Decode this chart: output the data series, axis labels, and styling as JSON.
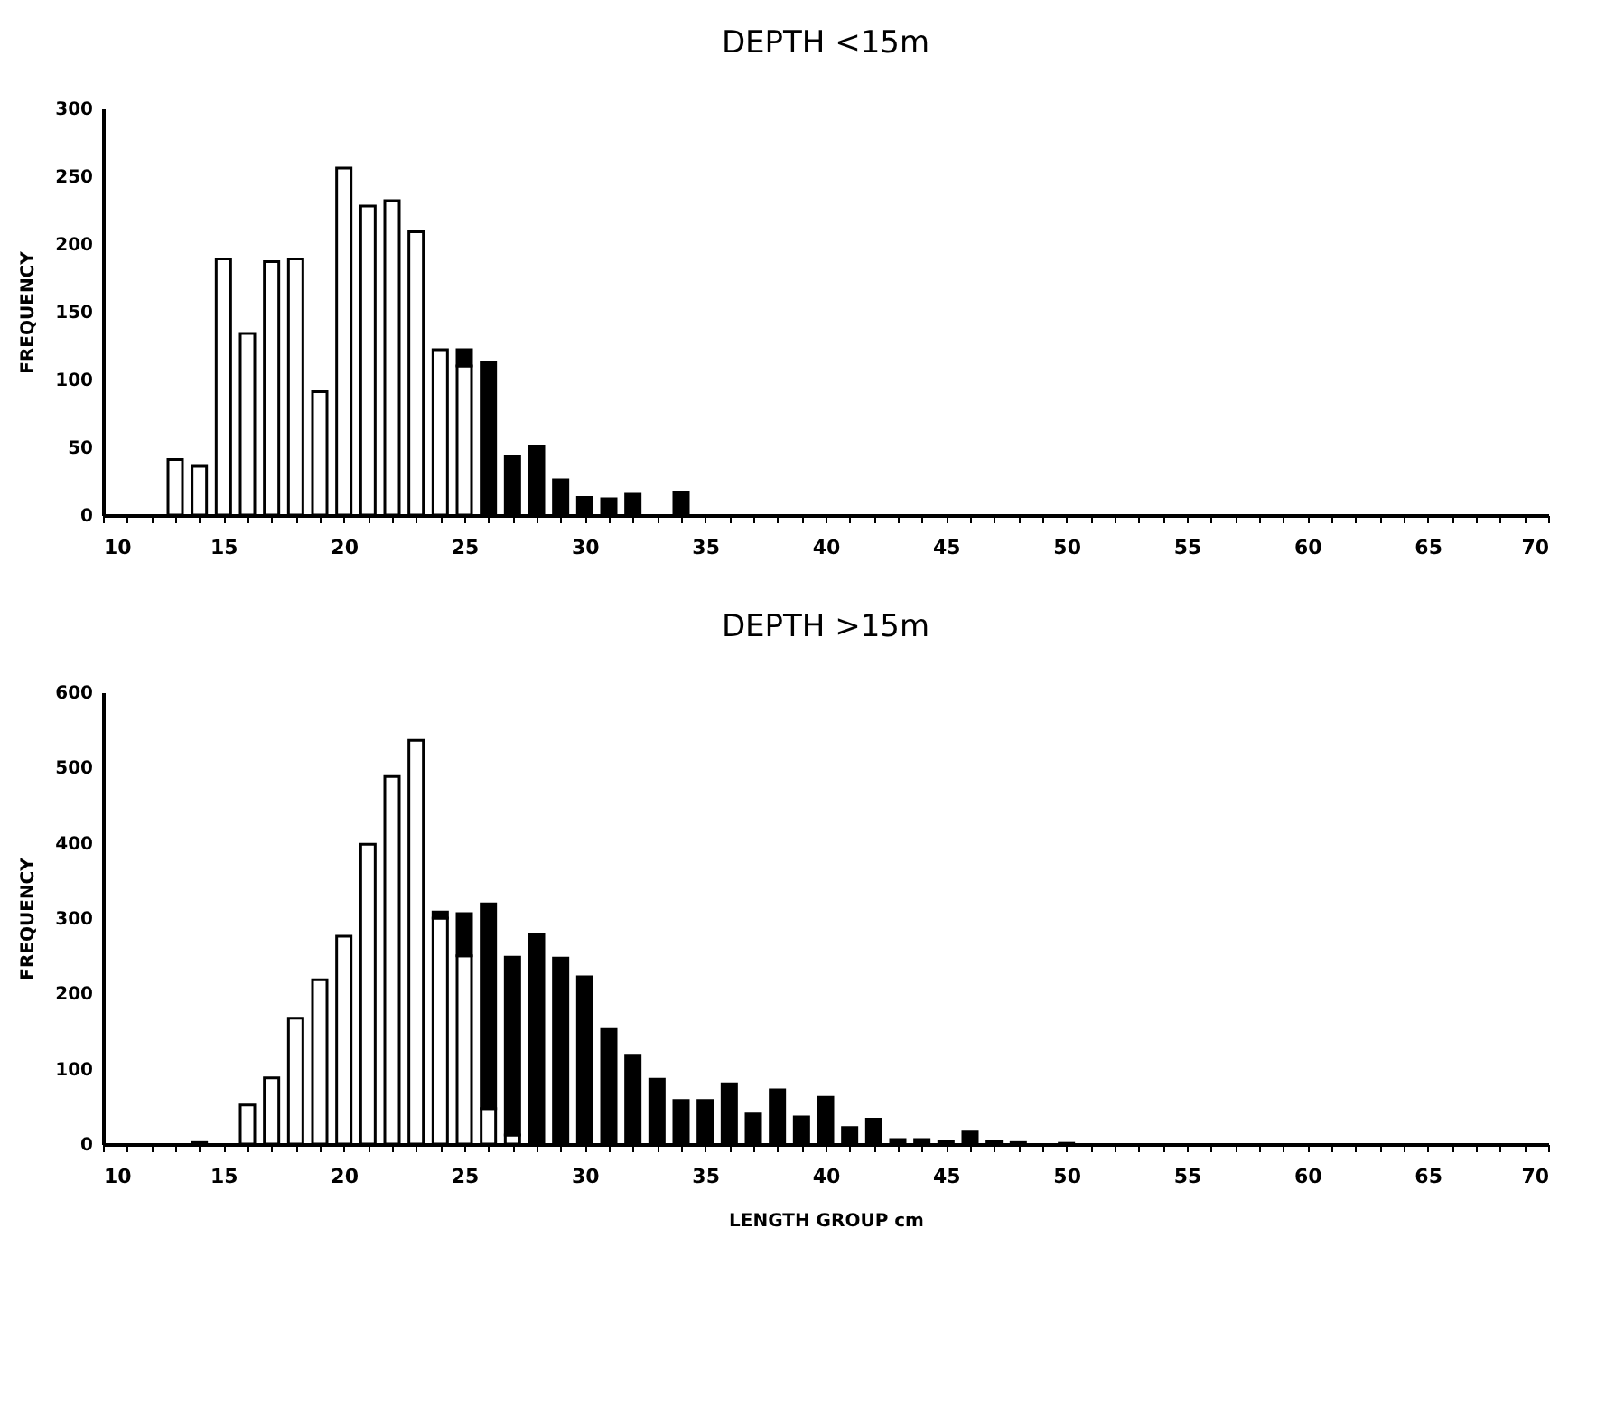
{
  "chart_data": [
    {
      "type": "bar",
      "title": "DEPTH <15m",
      "ylabel": "FREQUENCY",
      "stacked": true,
      "grid": false,
      "x": [
        13,
        14,
        15,
        16,
        17,
        18,
        19,
        20,
        21,
        22,
        23,
        24,
        25,
        26,
        27,
        28,
        29,
        30,
        31,
        32,
        34
      ],
      "series": [
        {
          "color": "#ffffff",
          "values": [
            41,
            36,
            189,
            134,
            187,
            189,
            91,
            256,
            228,
            232,
            209,
            122,
            110,
            null,
            null,
            null,
            null,
            null,
            null,
            null,
            null
          ]
        },
        {
          "color": "#000000",
          "values": [
            null,
            null,
            null,
            null,
            null,
            null,
            null,
            null,
            null,
            null,
            null,
            null,
            12,
            113,
            43,
            51,
            26,
            13,
            12,
            16,
            17
          ]
        }
      ],
      "xlim": [
        10,
        70
      ],
      "xticks": [
        10,
        {
          "value": 11,
          "label": null
        },
        {
          "value": 12,
          "label": null
        },
        {
          "value": 13,
          "label": null
        },
        {
          "value": 14,
          "label": null
        },
        15,
        {
          "value": 16,
          "label": null
        },
        {
          "value": 17,
          "label": null
        },
        {
          "value": 18,
          "label": null
        },
        {
          "value": 19,
          "label": null
        },
        20,
        {
          "value": 21,
          "label": null
        },
        {
          "value": 22,
          "label": null
        },
        {
          "value": 23,
          "label": null
        },
        {
          "value": 24,
          "label": null
        },
        25,
        {
          "value": 26,
          "label": null
        },
        {
          "value": 27,
          "label": null
        },
        {
          "value": 28,
          "label": null
        },
        {
          "value": 29,
          "label": null
        },
        30,
        {
          "value": 31,
          "label": null
        },
        {
          "value": 32,
          "label": null
        },
        {
          "value": 33,
          "label": null
        },
        {
          "value": 34,
          "label": null
        },
        35,
        {
          "value": 36,
          "label": null
        },
        {
          "value": 37,
          "label": null
        },
        {
          "value": 38,
          "label": null
        },
        {
          "value": 39,
          "label": null
        },
        40,
        {
          "value": 41,
          "label": null
        },
        {
          "value": 42,
          "label": null
        },
        {
          "value": 43,
          "label": null
        },
        {
          "value": 44,
          "label": null
        },
        45,
        {
          "value": 46,
          "label": null
        },
        {
          "value": 47,
          "label": null
        },
        {
          "value": 48,
          "label": null
        },
        {
          "value": 49,
          "label": null
        },
        50,
        {
          "value": 51,
          "label": null
        },
        {
          "value": 52,
          "label": null
        },
        {
          "value": 53,
          "label": null
        },
        {
          "value": 54,
          "label": null
        },
        55,
        {
          "value": 56,
          "label": null
        },
        {
          "value": 57,
          "label": null
        },
        {
          "value": 58,
          "label": null
        },
        {
          "value": 59,
          "label": null
        },
        60,
        {
          "value": 61,
          "label": null
        },
        {
          "value": 62,
          "label": null
        },
        {
          "value": 63,
          "label": null
        },
        {
          "value": 64,
          "label": null
        },
        65,
        {
          "value": 66,
          "label": null
        },
        {
          "value": 67,
          "label": null
        },
        {
          "value": 68,
          "label": null
        },
        {
          "value": 69,
          "label": null
        },
        70
      ],
      "ylim": [
        0,
        300
      ],
      "yticks": [
        0,
        50,
        100,
        150,
        200,
        250,
        300
      ]
    },
    {
      "type": "bar",
      "title": "DEPTH >15m",
      "xlabel": "LENGTH GROUP cm",
      "ylabel": "FREQUENCY",
      "stacked": true,
      "grid": false,
      "x": [
        14,
        16,
        17,
        18,
        19,
        20,
        21,
        22,
        23,
        24,
        25,
        26,
        27,
        28,
        29,
        30,
        31,
        32,
        33,
        34,
        35,
        36,
        37,
        38,
        39,
        40,
        41,
        42,
        43,
        44,
        45,
        46,
        47,
        48,
        50
      ],
      "series": [
        {
          "color": "#ffffff",
          "values": [
            2,
            52,
            88,
            167,
            218,
            276,
            398,
            488,
            536,
            300,
            250,
            47,
            12,
            null,
            null,
            null,
            null,
            null,
            null,
            null,
            null,
            null,
            null,
            null,
            null,
            null,
            null,
            null,
            null,
            null,
            null,
            null,
            null,
            null,
            null
          ]
        },
        {
          "color": "#000000",
          "values": [
            null,
            null,
            null,
            null,
            null,
            null,
            null,
            null,
            null,
            8,
            56,
            272,
            236,
            278,
            247,
            222,
            152,
            118,
            86,
            58,
            58,
            80,
            40,
            72,
            36,
            62,
            22,
            33,
            6,
            6,
            4,
            16,
            4,
            2,
            1
          ]
        }
      ],
      "xlim": [
        10,
        70
      ],
      "xticks": [
        10,
        {
          "value": 11,
          "label": null
        },
        {
          "value": 12,
          "label": null
        },
        {
          "value": 13,
          "label": null
        },
        {
          "value": 14,
          "label": null
        },
        15,
        {
          "value": 16,
          "label": null
        },
        {
          "value": 17,
          "label": null
        },
        {
          "value": 18,
          "label": null
        },
        {
          "value": 19,
          "label": null
        },
        20,
        {
          "value": 21,
          "label": null
        },
        {
          "value": 22,
          "label": null
        },
        {
          "value": 23,
          "label": null
        },
        {
          "value": 24,
          "label": null
        },
        25,
        {
          "value": 26,
          "label": null
        },
        {
          "value": 27,
          "label": null
        },
        {
          "value": 28,
          "label": null
        },
        {
          "value": 29,
          "label": null
        },
        30,
        {
          "value": 31,
          "label": null
        },
        {
          "value": 32,
          "label": null
        },
        {
          "value": 33,
          "label": null
        },
        {
          "value": 34,
          "label": null
        },
        35,
        {
          "value": 36,
          "label": null
        },
        {
          "value": 37,
          "label": null
        },
        {
          "value": 38,
          "label": null
        },
        {
          "value": 39,
          "label": null
        },
        40,
        {
          "value": 41,
          "label": null
        },
        {
          "value": 42,
          "label": null
        },
        {
          "value": 43,
          "label": null
        },
        {
          "value": 44,
          "label": null
        },
        45,
        {
          "value": 46,
          "label": null
        },
        {
          "value": 47,
          "label": null
        },
        {
          "value": 48,
          "label": null
        },
        {
          "value": 49,
          "label": null
        },
        50,
        {
          "value": 51,
          "label": null
        },
        {
          "value": 52,
          "label": null
        },
        {
          "value": 53,
          "label": null
        },
        {
          "value": 54,
          "label": null
        },
        55,
        {
          "value": 56,
          "label": null
        },
        {
          "value": 57,
          "label": null
        },
        {
          "value": 58,
          "label": null
        },
        {
          "value": 59,
          "label": null
        },
        60,
        {
          "value": 61,
          "label": null
        },
        {
          "value": 62,
          "label": null
        },
        {
          "value": 63,
          "label": null
        },
        {
          "value": 64,
          "label": null
        },
        65,
        {
          "value": 66,
          "label": null
        },
        {
          "value": 67,
          "label": null
        },
        {
          "value": 68,
          "label": null
        },
        {
          "value": 69,
          "label": null
        },
        70
      ],
      "ylim": [
        0,
        600
      ],
      "yticks": [
        0,
        100,
        200,
        300,
        400,
        500,
        600
      ]
    }
  ]
}
